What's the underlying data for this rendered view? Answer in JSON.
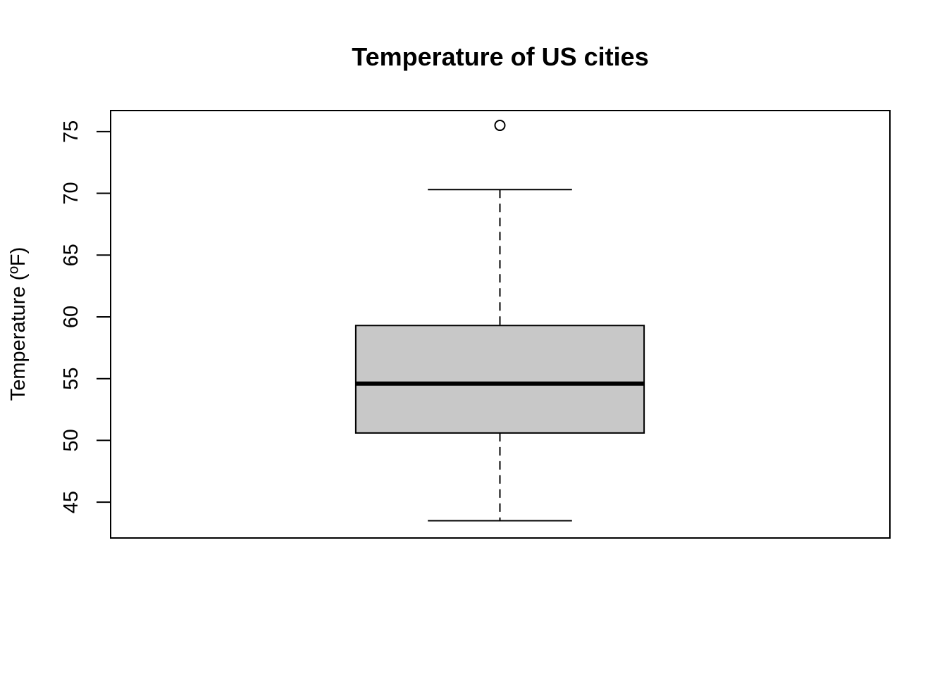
{
  "chart_data": {
    "type": "boxplot",
    "title": "Temperature of US cities",
    "xlabel": "",
    "ylabel": "Temperature (ºF)",
    "ylim": [
      42.1,
      76.7
    ],
    "yticks": [
      45,
      50,
      55,
      60,
      65,
      70,
      75
    ],
    "grid": false,
    "legend": "none",
    "boxes": [
      {
        "whisker_low": 43.5,
        "q1": 50.6,
        "median": 54.6,
        "q3": 59.3,
        "whisker_high": 70.3,
        "outliers": [
          75.5
        ]
      }
    ],
    "colors": {
      "box_fill": "#c8c8c8",
      "line": "#000000",
      "background": "#ffffff"
    }
  }
}
